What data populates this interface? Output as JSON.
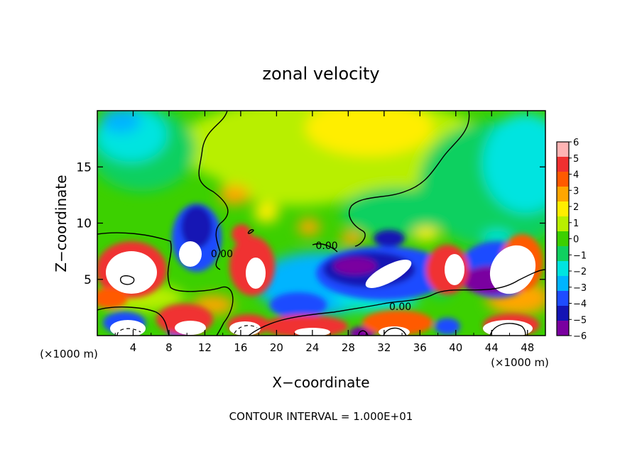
{
  "chart_data": {
    "type": "heatmap",
    "title": "zonal velocity",
    "xlabel": "X−coordinate",
    "ylabel": "Z−coordinate",
    "x_unit_left": "(×1000 m)",
    "x_unit_right": "(×1000 m)",
    "xlim": [
      0,
      50
    ],
    "ylim": [
      0,
      20
    ],
    "x_ticks": [
      4,
      8,
      12,
      16,
      20,
      24,
      28,
      32,
      36,
      40,
      44,
      48
    ],
    "x_tick_labels": [
      "4",
      "8",
      "12",
      "16",
      "20",
      "24",
      "28",
      "32",
      "36",
      "40",
      "44",
      "48"
    ],
    "y_ticks": [
      5,
      10,
      15
    ],
    "y_tick_labels": [
      "5",
      "10",
      "15"
    ],
    "colorbar": {
      "min": -6,
      "max": 6,
      "tick_values": [
        6,
        5,
        4,
        3,
        2,
        1,
        0,
        -1,
        -2,
        -3,
        -4,
        -5,
        -6
      ],
      "tick_labels": [
        "6",
        "5",
        "4",
        "3",
        "2",
        "1",
        "0",
        "−1",
        "−2",
        "−3",
        "−4",
        "−5",
        "−6"
      ],
      "colors": [
        "#ffb4b4",
        "#f03030",
        "#ff5a00",
        "#ffa600",
        "#ffee00",
        "#b8ef00",
        "#3cd000",
        "#10d060",
        "#00e4e0",
        "#00b4ff",
        "#1e4cff",
        "#1414b4",
        "#7a00a0"
      ],
      "above_max_color": "#ffffff",
      "below_min_color": "#ffffff"
    },
    "contour_labels": [
      {
        "text": "0.00",
        "x": 13.9,
        "z": 7.3
      },
      {
        "text": "0.00",
        "x": 25.6,
        "z": 8.0
      },
      {
        "text": "0.00",
        "x": 33.8,
        "z": 2.6
      }
    ],
    "footnote": "CONTOUR INTERVAL = 1.000E+01"
  }
}
